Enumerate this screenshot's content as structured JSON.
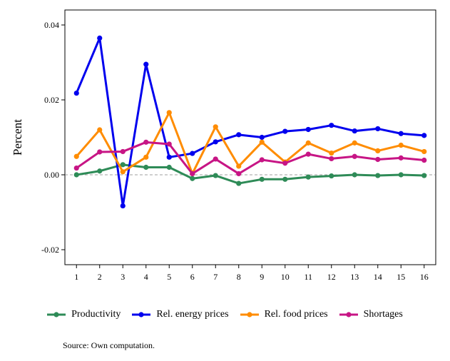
{
  "chart_data": {
    "type": "line",
    "ylabel": "Percent",
    "xlabel": "",
    "x": [
      1,
      2,
      3,
      4,
      5,
      6,
      7,
      8,
      9,
      10,
      11,
      12,
      13,
      14,
      15,
      16
    ],
    "xticks": [
      "1",
      "2",
      "3",
      "4",
      "5",
      "6",
      "7",
      "8",
      "9",
      "10",
      "11",
      "12",
      "13",
      "14",
      "15",
      "16"
    ],
    "ylim": [
      -0.024,
      0.044
    ],
    "yticks": [
      -0.02,
      0.0,
      0.02,
      0.04
    ],
    "ytick_labels": [
      "-0.02",
      "0.00",
      "0.02",
      "0.04"
    ],
    "reference_line": 0.0,
    "grid": false,
    "legend_position": "bottom",
    "series": [
      {
        "name": "Productivity",
        "color": "#2e8b57",
        "values": [
          0.0,
          0.001,
          0.0027,
          0.002,
          0.002,
          -0.001,
          -0.0002,
          -0.0023,
          -0.0012,
          -0.0012,
          -0.0006,
          -0.0003,
          0.0,
          -0.0002,
          0.0,
          -0.0002
        ]
      },
      {
        "name": "Rel. energy prices",
        "color": "#0000ee",
        "values": [
          0.0218,
          0.0365,
          -0.0083,
          0.0295,
          0.0047,
          0.0057,
          0.0088,
          0.0107,
          0.01,
          0.0116,
          0.0121,
          0.0132,
          0.0117,
          0.0123,
          0.011,
          0.0105
        ]
      },
      {
        "name": "Rel. food prices",
        "color": "#ff8c00",
        "values": [
          0.0049,
          0.012,
          0.0008,
          0.0047,
          0.0166,
          0.0003,
          0.0128,
          0.0023,
          0.0087,
          0.0034,
          0.0085,
          0.0058,
          0.0085,
          0.0064,
          0.0079,
          0.0062
        ]
      },
      {
        "name": "Shortages",
        "color": "#c71585",
        "values": [
          0.0018,
          0.0061,
          0.0062,
          0.0087,
          0.0082,
          0.0003,
          0.0042,
          0.0003,
          0.004,
          0.0031,
          0.0055,
          0.0043,
          0.0049,
          0.0041,
          0.0045,
          0.0039
        ]
      }
    ]
  },
  "source_note": "Source: Own computation."
}
